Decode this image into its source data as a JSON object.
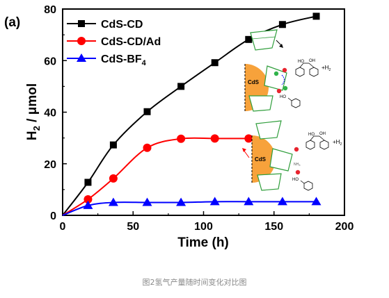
{
  "chart_data": {
    "type": "line",
    "panel_label": "(a)",
    "xlabel": "Time (h)",
    "ylabel_main": "H",
    "ylabel_sub": "2",
    "ylabel_unit": " / μmol",
    "xlim": [
      0,
      200
    ],
    "ylim": [
      0,
      80
    ],
    "xticks": [
      0,
      50,
      100,
      150,
      200
    ],
    "yticks": [
      0,
      20,
      40,
      60,
      80
    ],
    "grid": false,
    "legend_position": "top-left",
    "series": [
      {
        "name": "CdS-CD",
        "color": "#000000",
        "marker": "square",
        "x": [
          0,
          18,
          36,
          60,
          84,
          108,
          132,
          156,
          180
        ],
        "y": [
          0,
          12.8,
          27.3,
          40.2,
          50.0,
          59.2,
          68.2,
          74.0,
          77.2
        ]
      },
      {
        "name": "CdS-CD/Ad",
        "color": "#ff0000",
        "marker": "circle",
        "x": [
          0,
          18,
          36,
          60,
          84,
          108,
          132
        ],
        "y": [
          0,
          6.2,
          14.3,
          26.2,
          29.7,
          29.8,
          29.8
        ]
      },
      {
        "name": "CdS-BF4",
        "name_main": "CdS-BF",
        "name_sub": "4",
        "color": "#0000ff",
        "marker": "triangle",
        "x": [
          0,
          18,
          36,
          60,
          84,
          108,
          132,
          156,
          180
        ],
        "y": [
          0,
          3.8,
          5.0,
          5.0,
          5.0,
          5.3,
          5.3,
          5.3,
          5.3
        ]
      }
    ]
  },
  "schematic": {
    "particle_label_top": "CdS",
    "particle_label_bottom": "CdS",
    "plus_h2_top_main": "+H",
    "plus_h2_top_sub": "2",
    "plus_h2_bottom_main": "+H",
    "plus_h2_bottom_sub": "2",
    "ho_1": "HO",
    "oh_1": "OH",
    "ho_2": "HO",
    "ho_3": "HO",
    "oh_3": "OH",
    "ho_4": "HO",
    "nh3_label": "NH",
    "nh3_sub": "3",
    "colors": {
      "particle": "#f7a23b",
      "cd": "#2e9d3a",
      "oxygen": "#e8242e",
      "hydrogen": "#31b34a"
    }
  },
  "caption": "图2氢气产量随时间变化对比图"
}
